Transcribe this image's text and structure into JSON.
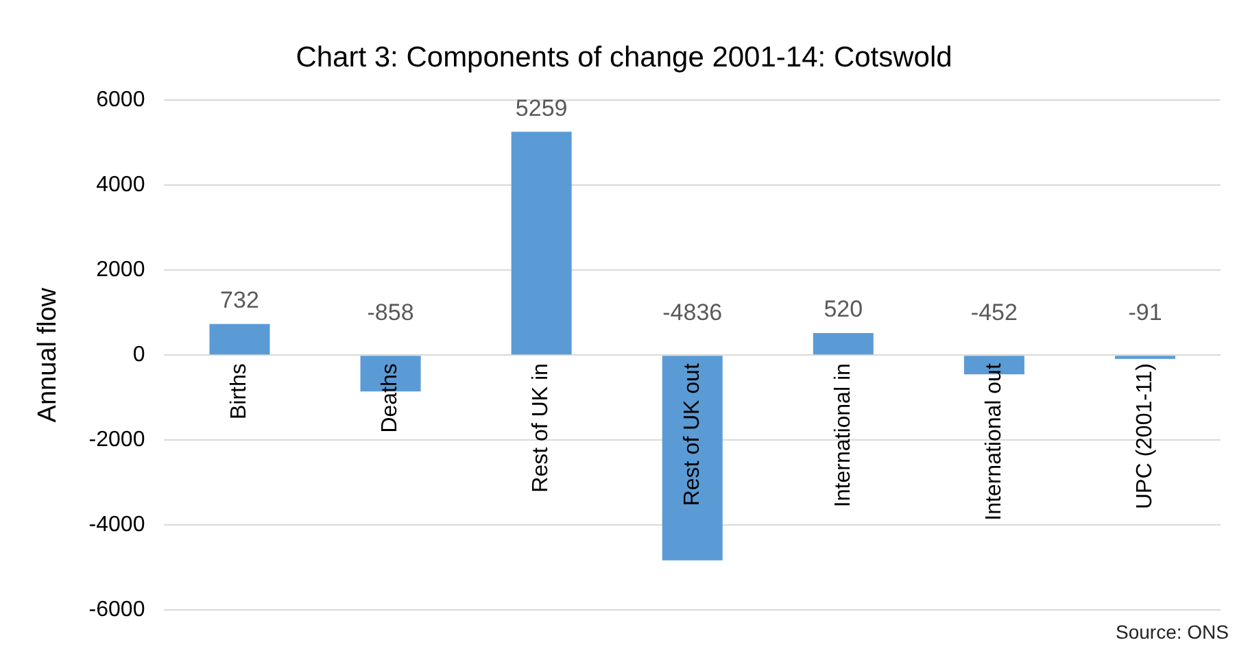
{
  "chart_data": {
    "type": "bar",
    "title": "Chart 3: Components of change 2001-14: Cotswold",
    "ylabel": "Annual flow",
    "categories": [
      "Births",
      "Deaths",
      "Rest of UK in",
      "Rest of UK out",
      "International in",
      "International out",
      "UPC (2001-11)"
    ],
    "values": [
      732,
      -858,
      5259,
      -4836,
      520,
      -452,
      -91
    ],
    "color": "#5b9bd5",
    "ylim": [
      -6000,
      6000
    ],
    "yticks": [
      -6000,
      -4000,
      -2000,
      0,
      2000,
      4000,
      6000
    ],
    "grid": "y",
    "data_labels": true,
    "annotations": [
      "Source: ONS"
    ]
  }
}
